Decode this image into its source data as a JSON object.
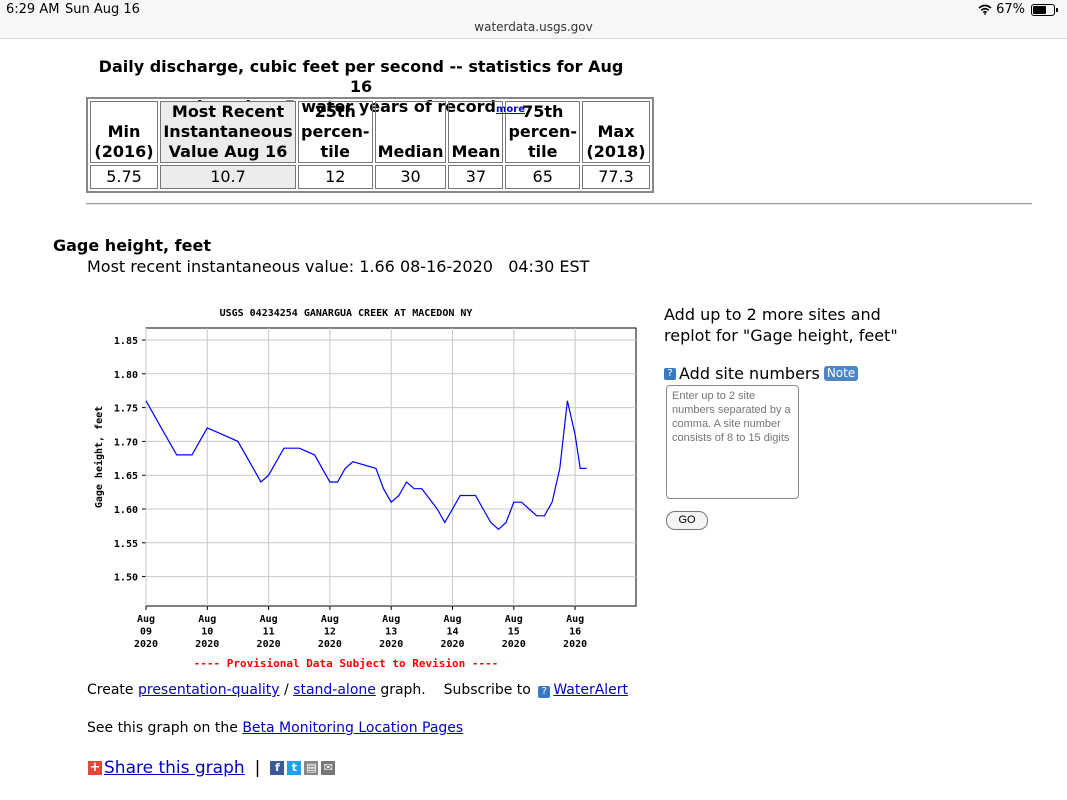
{
  "status_bar": {
    "time": "6:29 AM",
    "date": "Sun Aug 16",
    "battery": "67%",
    "battery_level": 0.67
  },
  "url": "waterdata.usgs.gov",
  "stats": {
    "title_line1": "Daily discharge, cubic feet per second -- statistics for Aug 16",
    "title_line2": "based on 5 water years of record",
    "more_link": "more",
    "headers": [
      [
        "Min",
        "(2016)"
      ],
      [
        "Most Recent",
        "Instantaneous",
        "Value Aug 16"
      ],
      [
        "25th",
        "percen-",
        "tile"
      ],
      [
        "Median"
      ],
      [
        "Mean"
      ],
      [
        "75th",
        "percen-",
        "tile"
      ],
      [
        "Max",
        "(2018)"
      ]
    ],
    "values": [
      "5.75",
      "10.7",
      "12",
      "30",
      "37",
      "65",
      "77.3"
    ]
  },
  "gage": {
    "heading": "Gage height, feet",
    "recent": "Most recent instantaneous value: 1.66 08-16-2020   04:30 EST"
  },
  "chart_data": {
    "type": "line",
    "title": "USGS 04234254 GANARGUA CREEK AT MACEDON NY",
    "ylabel": "Gage height, feet",
    "ylim": [
      1.45,
      1.85
    ],
    "yticks": [
      "1.85",
      "1.80",
      "1.75",
      "1.70",
      "1.65",
      "1.60",
      "1.55",
      "1.50"
    ],
    "xticks": [
      [
        "Aug",
        "09",
        "2020"
      ],
      [
        "Aug",
        "10",
        "2020"
      ],
      [
        "Aug",
        "11",
        "2020"
      ],
      [
        "Aug",
        "12",
        "2020"
      ],
      [
        "Aug",
        "13",
        "2020"
      ],
      [
        "Aug",
        "14",
        "2020"
      ],
      [
        "Aug",
        "15",
        "2020"
      ],
      [
        "Aug",
        "16",
        "2020"
      ]
    ],
    "grid": true,
    "series_color": "#0000ff",
    "footer": "---- Provisional Data Subject to Revision ----",
    "series": [
      {
        "values": [
          [
            "2020-08-09T00:00",
            1.76
          ],
          [
            "2020-08-09T03:00",
            1.74
          ],
          [
            "2020-08-09T06:00",
            1.72
          ],
          [
            "2020-08-09T09:00",
            1.7
          ],
          [
            "2020-08-09T12:00",
            1.68
          ],
          [
            "2020-08-09T18:00",
            1.68
          ],
          [
            "2020-08-09T21:00",
            1.7
          ],
          [
            "2020-08-10T00:00",
            1.72
          ],
          [
            "2020-08-10T06:00",
            1.71
          ],
          [
            "2020-08-10T12:00",
            1.7
          ],
          [
            "2020-08-10T18:00",
            1.66
          ],
          [
            "2020-08-10T21:00",
            1.64
          ],
          [
            "2020-08-11T00:00",
            1.65
          ],
          [
            "2020-08-11T03:00",
            1.67
          ],
          [
            "2020-08-11T06:00",
            1.69
          ],
          [
            "2020-08-11T12:00",
            1.69
          ],
          [
            "2020-08-11T18:00",
            1.68
          ],
          [
            "2020-08-11T21:00",
            1.66
          ],
          [
            "2020-08-12T00:00",
            1.64
          ],
          [
            "2020-08-12T03:00",
            1.64
          ],
          [
            "2020-08-12T06:00",
            1.66
          ],
          [
            "2020-08-12T09:00",
            1.67
          ],
          [
            "2020-08-12T18:00",
            1.66
          ],
          [
            "2020-08-12T21:00",
            1.63
          ],
          [
            "2020-08-13T00:00",
            1.61
          ],
          [
            "2020-08-13T03:00",
            1.62
          ],
          [
            "2020-08-13T06:00",
            1.64
          ],
          [
            "2020-08-13T09:00",
            1.63
          ],
          [
            "2020-08-13T12:00",
            1.63
          ],
          [
            "2020-08-13T18:00",
            1.6
          ],
          [
            "2020-08-13T21:00",
            1.58
          ],
          [
            "2020-08-14T00:00",
            1.6
          ],
          [
            "2020-08-14T03:00",
            1.62
          ],
          [
            "2020-08-14T09:00",
            1.62
          ],
          [
            "2020-08-14T12:00",
            1.6
          ],
          [
            "2020-08-14T15:00",
            1.58
          ],
          [
            "2020-08-14T18:00",
            1.57
          ],
          [
            "2020-08-14T21:00",
            1.58
          ],
          [
            "2020-08-15T00:00",
            1.61
          ],
          [
            "2020-08-15T03:00",
            1.61
          ],
          [
            "2020-08-15T06:00",
            1.6
          ],
          [
            "2020-08-15T09:00",
            1.59
          ],
          [
            "2020-08-15T12:00",
            1.59
          ],
          [
            "2020-08-15T15:00",
            1.61
          ],
          [
            "2020-08-15T18:00",
            1.66
          ],
          [
            "2020-08-15T21:00",
            1.76
          ],
          [
            "2020-08-16T00:00",
            1.71
          ],
          [
            "2020-08-16T02:00",
            1.66
          ],
          [
            "2020-08-16T04:30",
            1.66
          ]
        ]
      }
    ]
  },
  "addsites": {
    "line1": "Add up to 2 more sites and",
    "line2": "replot for \"Gage height, feet\"",
    "label": "Add site numbers",
    "note": "Note",
    "placeholder": "Enter up to 2 site numbers separated by a comma. A site number consists of 8 to 15 digits",
    "go": "GO"
  },
  "links": {
    "create": "Create",
    "presentation": "presentation-quality",
    "slash": "/",
    "standalone": "stand-alone",
    "graph": "graph.",
    "subscribe": "Subscribe to",
    "wateralert": "WaterAlert",
    "beta_prefix": "See this graph on the",
    "beta_link": "Beta Monitoring Location Pages",
    "share": "Share this graph",
    "sep": "|"
  },
  "colors": {
    "link": "#0000cc",
    "footer": "#ff0000",
    "plot_line": "#0000ff"
  }
}
